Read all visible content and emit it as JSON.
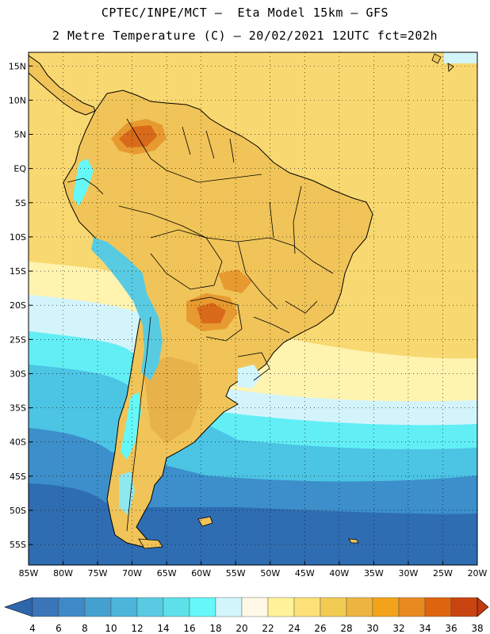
{
  "header": {
    "line1": "CPTEC/INPE/MCT –  Eta Model 15km – GFS",
    "line2": "2 Metre Temperature (C) – 20/02/2021 12UTC fct=202h"
  },
  "map": {
    "lon_range": [
      -85,
      -20
    ],
    "lat_range": [
      -58,
      17
    ],
    "lat_ticks": [
      "15N",
      "10N",
      "5N",
      "EQ",
      "5S",
      "10S",
      "15S",
      "20S",
      "25S",
      "30S",
      "35S",
      "40S",
      "45S",
      "50S",
      "55S"
    ],
    "lon_ticks": [
      "85W",
      "80W",
      "75W",
      "70W",
      "65W",
      "60W",
      "55W",
      "50W",
      "45W",
      "40W",
      "35W",
      "30W",
      "25W",
      "20W"
    ]
  },
  "colorbar": {
    "labels": [
      "4",
      "6",
      "8",
      "10",
      "12",
      "14",
      "16",
      "18",
      "20",
      "22",
      "24",
      "26",
      "28",
      "30",
      "32",
      "34",
      "36",
      "38"
    ],
    "colors": [
      "#3a76b8",
      "#3f8ac6",
      "#44a1cf",
      "#4cb6da",
      "#58cbe2",
      "#5ee0ea",
      "#66f8f8",
      "#d2f6fb",
      "#fff8e6",
      "#fff29a",
      "#fbe177",
      "#f2cb52",
      "#edb43f",
      "#f3a31a",
      "#e98a20",
      "#dd6510",
      "#c94410"
    ],
    "low_end_color": "#2e66ac",
    "high_end_color": "#c03a10"
  },
  "palette": {
    "ocean_deep": "#2f6db2",
    "ocean_mid": "#3c8fca",
    "ocean_cool": "#4cc4e4",
    "ocean_cyan": "#62eef5",
    "ocean_pale": "#d4f4fb",
    "warm_pale": "#fff3b0",
    "warm_base": "#f8d870",
    "warm_mid": "#f0c458",
    "hot": "#e79a30",
    "hottest": "#d86a1a",
    "coast": "#000000"
  }
}
